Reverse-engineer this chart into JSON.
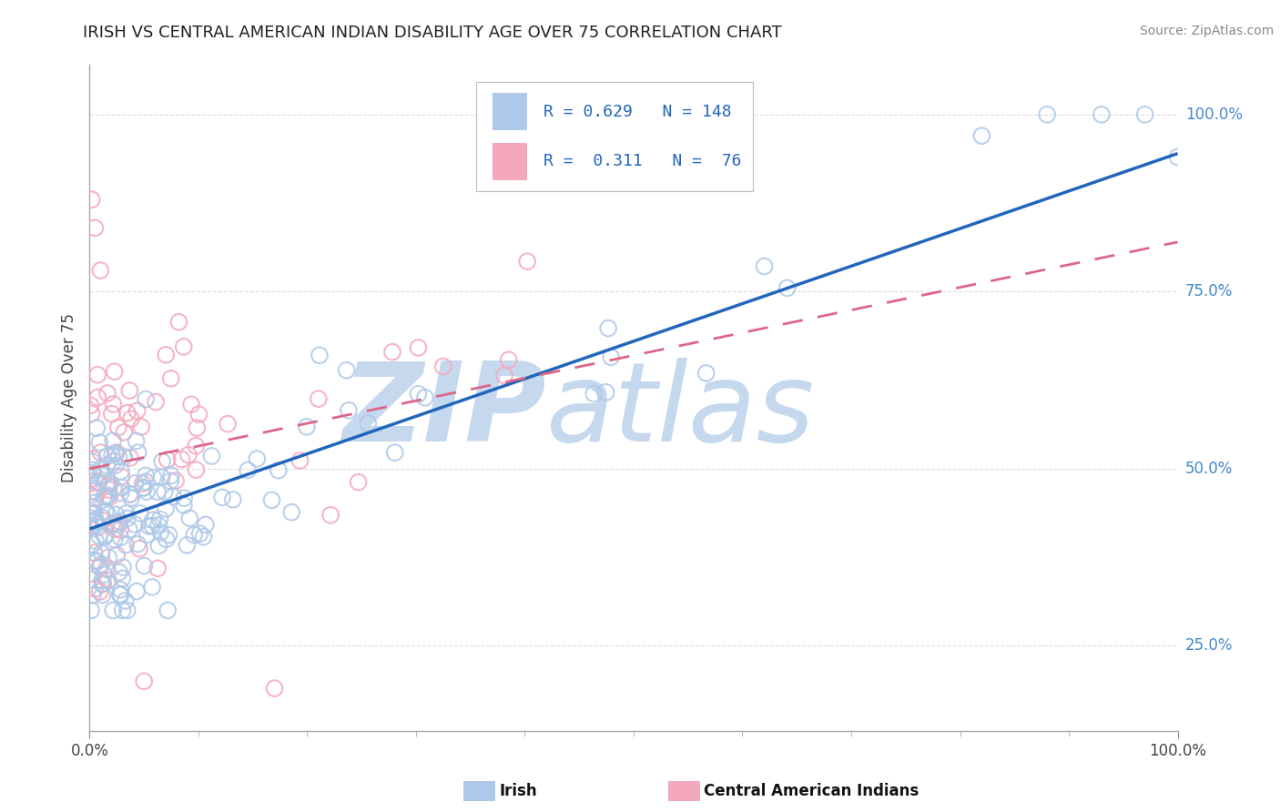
{
  "title": "IRISH VS CENTRAL AMERICAN INDIAN DISABILITY AGE OVER 75 CORRELATION CHART",
  "source": "Source: ZipAtlas.com",
  "ylabel": "Disability Age Over 75",
  "r_irish": 0.629,
  "n_irish": 148,
  "r_ca": 0.311,
  "n_ca": 76,
  "irish_color": "#adc8e8",
  "ca_color": "#f4a8bc",
  "irish_line_color": "#2266bb",
  "ca_line_color": "#dd6688",
  "watermark_zip": "ZIP",
  "watermark_atlas": "atlas",
  "watermark_color": "#c5d8ee",
  "background_color": "#ffffff",
  "grid_color": "#dddddd",
  "right_label_color": "#4488cc",
  "xlim": [
    0.0,
    1.0
  ],
  "ylim": [
    0.13,
    1.07
  ],
  "irish_line_x0": 0.0,
  "irish_line_y0": 0.415,
  "irish_line_x1": 1.0,
  "irish_line_y1": 0.945,
  "ca_line_x0": 0.0,
  "ca_line_y0": 0.5,
  "ca_line_x1": 1.0,
  "ca_line_y1": 0.82,
  "seed_irish": 10,
  "seed_ca": 20
}
